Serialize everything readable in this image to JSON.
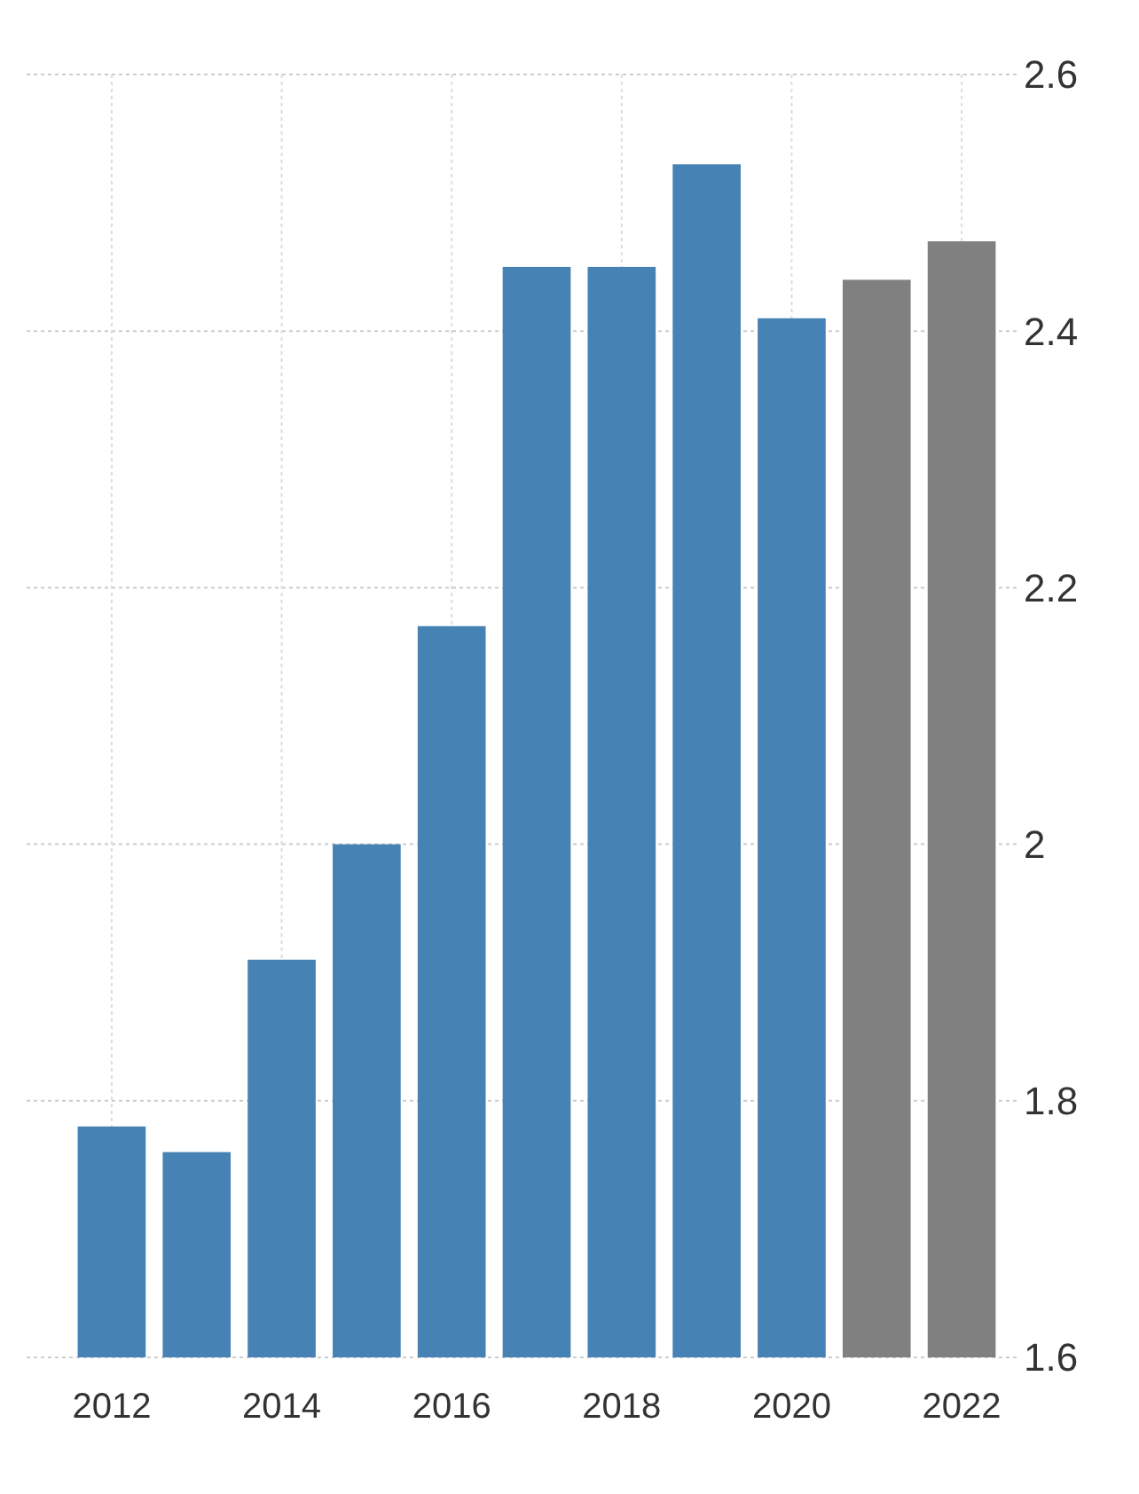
{
  "chart_data": {
    "type": "bar",
    "categories": [
      "2012",
      null,
      "2014",
      null,
      "2016",
      null,
      "2018",
      null,
      "2020",
      null,
      "2022"
    ],
    "values": [
      1.78,
      1.76,
      1.91,
      2.0,
      2.17,
      2.45,
      2.45,
      2.53,
      2.41,
      2.44,
      2.47
    ],
    "colors": [
      "#4682b4",
      "#4682b4",
      "#4682b4",
      "#4682b4",
      "#4682b4",
      "#4682b4",
      "#4682b4",
      "#4682b4",
      "#4682b4",
      "#808080",
      "#808080"
    ],
    "ylim": [
      1.6,
      2.6
    ],
    "yticks": [
      {
        "value": 1.6,
        "label": "1.6"
      },
      {
        "value": 1.8,
        "label": "1.8"
      },
      {
        "value": 2.0,
        "label": "2"
      },
      {
        "value": 2.2,
        "label": "2.2"
      },
      {
        "value": 2.4,
        "label": "2.4"
      },
      {
        "value": 2.6,
        "label": "2.6"
      }
    ],
    "grid": true
  }
}
